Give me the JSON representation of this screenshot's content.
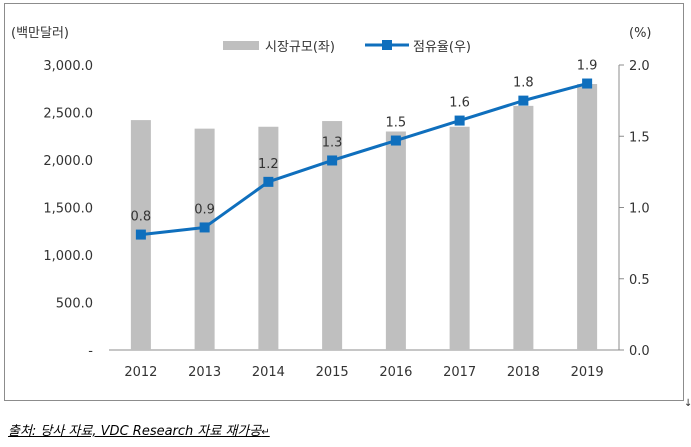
{
  "chart_data": {
    "type": "bar+line",
    "categories": [
      "2012",
      "2013",
      "2014",
      "2015",
      "2016",
      "2017",
      "2018",
      "2019"
    ],
    "series": [
      {
        "name": "시장규모(좌)",
        "type": "bar",
        "axis": "left",
        "color": "#bfbfbf",
        "values": [
          2420,
          2330,
          2350,
          2410,
          2300,
          2350,
          2570,
          2800
        ]
      },
      {
        "name": "점유율(우)",
        "type": "line",
        "axis": "right",
        "color": "#0f6fbd",
        "values": [
          0.8,
          0.9,
          1.2,
          1.3,
          1.5,
          1.6,
          1.8,
          1.9
        ],
        "plotted": [
          0.81,
          0.86,
          1.18,
          1.33,
          1.47,
          1.61,
          1.75,
          1.87
        ],
        "labels": [
          "0.8",
          "0.9",
          "1.2",
          "1.3",
          "1.5",
          "1.6",
          "1.8",
          "1.9"
        ]
      }
    ],
    "left_axis": {
      "unit": "(백만달러)",
      "ylim": [
        0,
        3000
      ],
      "ticks": [
        0,
        500,
        1000,
        1500,
        2000,
        2500,
        3000
      ],
      "tick_labels": [
        "-",
        "500.0",
        "1,000.0",
        "1,500.0",
        "2,000.0",
        "2,500.0",
        "3,000.0"
      ]
    },
    "right_axis": {
      "unit": "(%)",
      "ylim": [
        0,
        2.0
      ],
      "ticks": [
        0,
        0.5,
        1.0,
        1.5,
        2.0
      ],
      "tick_labels": [
        "0.0",
        "0.5",
        "1.0",
        "1.5",
        "2.0"
      ]
    },
    "legend": [
      "시장규모(좌)",
      "점유율(우)"
    ],
    "legend_position": "top-center",
    "grid": false
  },
  "source": "출처: 당사 자료, VDC Research 자료 재가공",
  "return_mark": "↵"
}
